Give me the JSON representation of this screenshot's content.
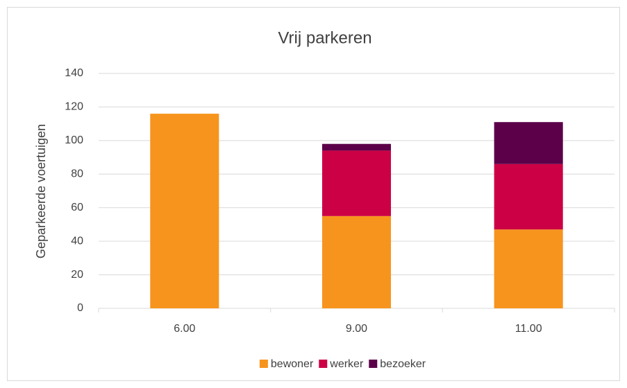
{
  "chart_data": {
    "type": "stacked_bar",
    "title": "Vrij parkeren",
    "y_label": "Geparkeerde voertuigen",
    "categories": [
      "6.00",
      "9.00",
      "11.00"
    ],
    "series": [
      {
        "name": "bewoner",
        "color": "#f7941d",
        "values": [
          116,
          55,
          47
        ]
      },
      {
        "name": "werker",
        "color": "#cc0044",
        "values": [
          0,
          39,
          39
        ]
      },
      {
        "name": "bezoeker",
        "color": "#5c0049",
        "values": [
          0,
          4,
          25
        ]
      }
    ],
    "ylim": [
      0,
      140
    ],
    "yticks": [
      0,
      20,
      40,
      60,
      80,
      100,
      120,
      140
    ],
    "grid": true,
    "legend": "bottom"
  }
}
